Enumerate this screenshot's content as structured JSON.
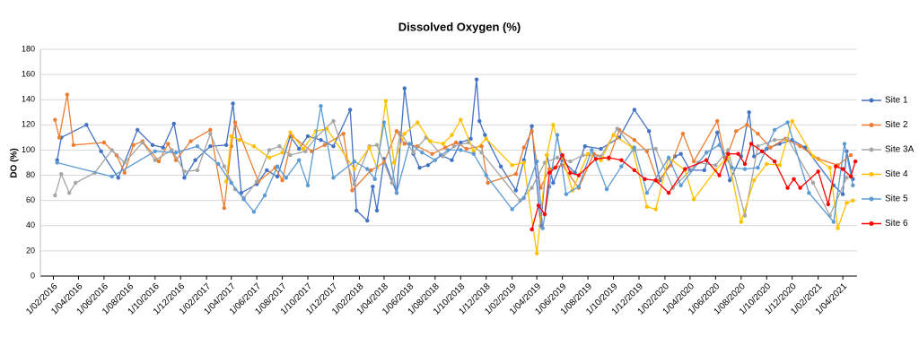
{
  "chart_data": {
    "type": "line",
    "title": "Dissolved Oxygen (%)",
    "y_label": "DO (%)",
    "xlim": [
      "2016-01-01",
      "2021-05-05"
    ],
    "ylim": [
      0,
      180
    ],
    "yticks": [
      0,
      20,
      40,
      60,
      80,
      100,
      120,
      140,
      160,
      180
    ],
    "grid": true,
    "legend": "right",
    "xticks": [
      {
        "value": "2016-02-01",
        "label": "1/02/2016"
      },
      {
        "value": "2016-04-01",
        "label": "1/04/2016"
      },
      {
        "value": "2016-06-01",
        "label": "1/06/2016"
      },
      {
        "value": "2016-08-01",
        "label": "1/08/2016"
      },
      {
        "value": "2016-10-01",
        "label": "1/10/2016"
      },
      {
        "value": "2016-12-01",
        "label": "1/12/2016"
      },
      {
        "value": "2017-02-01",
        "label": "1/02/2017"
      },
      {
        "value": "2017-04-01",
        "label": "1/04/2017"
      },
      {
        "value": "2017-06-01",
        "label": "1/06/2017"
      },
      {
        "value": "2017-08-01",
        "label": "1/08/2017"
      },
      {
        "value": "2017-10-01",
        "label": "1/10/2017"
      },
      {
        "value": "2017-12-01",
        "label": "1/12/2017"
      },
      {
        "value": "2018-02-01",
        "label": "1/02/2018"
      },
      {
        "value": "2018-04-01",
        "label": "1/04/2018"
      },
      {
        "value": "2018-06-01",
        "label": "1/06/2018"
      },
      {
        "value": "2018-08-01",
        "label": "1/08/2018"
      },
      {
        "value": "2018-10-01",
        "label": "1/10/2018"
      },
      {
        "value": "2018-12-01",
        "label": "1/12/2018"
      },
      {
        "value": "2019-02-01",
        "label": "1/02/2019"
      },
      {
        "value": "2019-04-01",
        "label": "1/04/2019"
      },
      {
        "value": "2019-06-01",
        "label": "1/06/2019"
      },
      {
        "value": "2019-08-01",
        "label": "1/08/2019"
      },
      {
        "value": "2019-10-01",
        "label": "1/10/2019"
      },
      {
        "value": "2019-12-01",
        "label": "1/12/2019"
      },
      {
        "value": "2020-02-01",
        "label": "1/02/2020"
      },
      {
        "value": "2020-04-01",
        "label": "1/04/2020"
      },
      {
        "value": "2020-06-01",
        "label": "1/06/2020"
      },
      {
        "value": "2020-08-01",
        "label": "1/08/2020"
      },
      {
        "value": "2020-10-01",
        "label": "1/10/2020"
      },
      {
        "value": "2020-12-01",
        "label": "1/12/2020"
      },
      {
        "value": "2021-02-01",
        "label": "1/02/2021"
      },
      {
        "value": "2021-04-01",
        "label": "1/04/2021"
      }
    ],
    "series": [
      {
        "name": "Site 1",
        "color": "#4472c4",
        "x": [
          "2016-02-10",
          "2016-02-20",
          "2016-04-20",
          "2016-05-25",
          "2016-07-05",
          "2016-08-20",
          "2016-09-25",
          "2016-10-20",
          "2016-11-15",
          "2016-12-10",
          "2017-01-05",
          "2017-02-10",
          "2017-03-20",
          "2017-04-05",
          "2017-04-25",
          "2017-06-01",
          "2017-06-25",
          "2017-07-20",
          "2017-08-20",
          "2017-09-10",
          "2017-10-01",
          "2017-11-01",
          "2017-12-01",
          "2018-01-10",
          "2018-01-25",
          "2018-02-20",
          "2018-03-05",
          "2018-03-15",
          "2018-04-01",
          "2018-05-01",
          "2018-05-20",
          "2018-06-10",
          "2018-06-25",
          "2018-07-15",
          "2018-08-15",
          "2018-09-10",
          "2018-10-01",
          "2018-10-25",
          "2018-11-08",
          "2018-11-15",
          "2018-11-28",
          "2019-01-05",
          "2019-02-10",
          "2019-03-01",
          "2019-03-20",
          "2019-04-10",
          "2019-04-25",
          "2019-05-10",
          "2019-06-01",
          "2019-07-01",
          "2019-07-25",
          "2019-09-01",
          "2019-10-15",
          "2019-11-20",
          "2019-12-25",
          "2020-01-20",
          "2020-02-25",
          "2020-03-10",
          "2020-04-01",
          "2020-05-05",
          "2020-06-05",
          "2020-07-05",
          "2020-08-01",
          "2020-08-20",
          "2020-09-01",
          "2020-10-01",
          "2020-11-01",
          "2020-12-01",
          "2021-01-01",
          "2021-03-10",
          "2021-04-01",
          "2021-04-10",
          "2021-04-25"
        ],
        "values": [
          92,
          110,
          120,
          99,
          78,
          116,
          104,
          102,
          121,
          78,
          92,
          103,
          104,
          137,
          66,
          73,
          84,
          79,
          111,
          101,
          111,
          108,
          103,
          132,
          52,
          44,
          71,
          52,
          93,
          66,
          149,
          97,
          86,
          88,
          96,
          92,
          106,
          109,
          156,
          123,
          112,
          87,
          68,
          92,
          119,
          40,
          96,
          74,
          92,
          82,
          103,
          101,
          110,
          132,
          115,
          76,
          95,
          97,
          84,
          84,
          114,
          76,
          95,
          130,
          95,
          101,
          105,
          108,
          102,
          72,
          65,
          99,
          77
        ]
      },
      {
        "name": "Site 2",
        "color": "#ed7d31",
        "x": [
          "2016-02-05",
          "2016-02-15",
          "2016-03-05",
          "2016-03-20",
          "2016-06-01",
          "2016-07-01",
          "2016-07-20",
          "2016-08-10",
          "2016-09-01",
          "2016-10-10",
          "2016-11-01",
          "2016-11-20",
          "2016-12-25",
          "2017-02-10",
          "2017-03-15",
          "2017-04-01",
          "2017-04-10",
          "2017-06-05",
          "2017-07-15",
          "2017-08-01",
          "2017-08-25",
          "2017-10-10",
          "2017-11-10",
          "2017-12-25",
          "2018-01-15",
          "2018-03-01",
          "2018-04-01",
          "2018-05-01",
          "2018-05-20",
          "2018-06-20",
          "2018-07-25",
          "2018-08-25",
          "2018-09-20",
          "2018-10-15",
          "2018-11-20",
          "2018-12-05",
          "2019-02-10",
          "2019-03-01",
          "2019-03-20",
          "2019-04-10",
          "2019-05-01",
          "2019-06-01",
          "2019-07-10",
          "2019-08-15",
          "2019-09-20",
          "2019-10-15",
          "2019-11-20",
          "2019-12-20",
          "2020-01-15",
          "2020-02-15",
          "2020-03-15",
          "2020-04-10",
          "2020-06-05",
          "2020-06-25",
          "2020-07-20",
          "2020-08-15",
          "2020-09-10",
          "2020-10-10",
          "2020-11-15",
          "2020-12-20",
          "2021-02-01",
          "2021-03-20",
          "2021-04-20"
        ],
        "values": [
          124,
          110,
          144,
          104,
          106,
          96,
          82,
          104,
          107,
          91,
          105,
          92,
          107,
          116,
          54,
          103,
          122,
          75,
          86,
          76,
          111,
          99,
          104,
          113,
          68,
          84,
          90,
          115,
          105,
          103,
          97,
          102,
          106,
          101,
          103,
          74,
          81,
          102,
          115,
          70,
          85,
          88,
          70,
          97,
          93,
          116,
          108,
          99,
          75,
          88,
          113,
          91,
          123,
          92,
          115,
          120,
          113,
          102,
          109,
          103,
          93,
          88,
          96
        ]
      },
      {
        "name": "Site 3A",
        "color": "#a5a5a5",
        "x": [
          "2016-02-05",
          "2016-02-20",
          "2016-03-10",
          "2016-03-25",
          "2016-05-10",
          "2016-06-20",
          "2016-07-20",
          "2016-09-01",
          "2016-10-01",
          "2016-11-10",
          "2016-12-10",
          "2017-01-10",
          "2017-02-10",
          "2017-03-15",
          "2017-04-10",
          "2017-05-01",
          "2017-06-01",
          "2017-07-01",
          "2017-07-25",
          "2017-08-20",
          "2017-09-25",
          "2017-10-20",
          "2017-12-01",
          "2018-01-20",
          "2018-02-25",
          "2018-03-15",
          "2018-04-20",
          "2018-05-10",
          "2018-06-10",
          "2018-07-10",
          "2018-08-20",
          "2018-09-15",
          "2018-10-20",
          "2018-11-20",
          "2019-02-20",
          "2019-03-20",
          "2019-04-20",
          "2019-05-20",
          "2019-06-20",
          "2019-07-20",
          "2019-09-01",
          "2019-10-10",
          "2019-11-20",
          "2020-01-10",
          "2020-02-20",
          "2020-04-20",
          "2020-06-01",
          "2020-07-01",
          "2020-08-10",
          "2020-09-10",
          "2020-10-20",
          "2020-11-20",
          "2021-01-20",
          "2021-03-01",
          "2021-04-10"
        ],
        "values": [
          64,
          81,
          66,
          74,
          82,
          100,
          90,
          106,
          92,
          100,
          83,
          84,
          113,
          87,
          69,
          62,
          75,
          100,
          103,
          96,
          99,
          110,
          123,
          73,
          103,
          104,
          74,
          114,
          98,
          110,
          95,
          103,
          106,
          98,
          60,
          70,
          90,
          94,
          91,
          96,
          95,
          117,
          100,
          101,
          70,
          90,
          88,
          100,
          48,
          103,
          108,
          109,
          74,
          48,
          78
        ]
      },
      {
        "name": "Site 4",
        "color": "#ffc000",
        "x": [
          "2017-03-20",
          "2017-04-01",
          "2017-04-20",
          "2017-05-25",
          "2017-07-01",
          "2017-08-01",
          "2017-08-20",
          "2017-09-20",
          "2017-10-20",
          "2017-11-15",
          "2018-01-20",
          "2018-02-25",
          "2018-03-15",
          "2018-04-05",
          "2018-04-25",
          "2018-05-20",
          "2018-06-20",
          "2018-07-20",
          "2018-08-20",
          "2018-09-10",
          "2018-10-01",
          "2018-11-01",
          "2018-12-01",
          "2019-02-01",
          "2019-03-01",
          "2019-04-01",
          "2019-04-25",
          "2019-05-10",
          "2019-06-01",
          "2019-06-25",
          "2019-08-01",
          "2019-09-01",
          "2019-10-01",
          "2019-11-15",
          "2019-12-20",
          "2020-01-10",
          "2020-02-10",
          "2020-03-20",
          "2020-04-10",
          "2020-06-01",
          "2020-07-01",
          "2020-08-01",
          "2020-09-01",
          "2020-10-01",
          "2020-11-01",
          "2020-12-01",
          "2021-01-20",
          "2021-03-01",
          "2021-03-20",
          "2021-04-10",
          "2021-04-25"
        ],
        "values": [
          75,
          111,
          108,
          103,
          94,
          98,
          114,
          101,
          115,
          117,
          85,
          102,
          86,
          139,
          90,
          113,
          122,
          107,
          105,
          112,
          124,
          99,
          109,
          88,
          90,
          18,
          96,
          120,
          95,
          68,
          97,
          92,
          112,
          102,
          55,
          53,
          94,
          84,
          61,
          84,
          95,
          43,
          76,
          89,
          88,
          123,
          95,
          86,
          38,
          58,
          60
        ]
      },
      {
        "name": "Site 5",
        "color": "#5b9bd5",
        "x": [
          "2016-02-10",
          "2016-06-20",
          "2016-10-01",
          "2016-11-20",
          "2017-01-10",
          "2017-03-01",
          "2017-04-01",
          "2017-05-01",
          "2017-05-25",
          "2017-06-20",
          "2017-07-20",
          "2017-08-10",
          "2017-09-10",
          "2017-10-01",
          "2017-11-01",
          "2017-12-01",
          "2018-01-20",
          "2018-02-20",
          "2018-03-10",
          "2018-04-01",
          "2018-05-01",
          "2018-06-01",
          "2018-07-01",
          "2018-08-01",
          "2018-09-01",
          "2018-10-01",
          "2018-11-01",
          "2018-12-01",
          "2019-02-01",
          "2019-03-01",
          "2019-04-01",
          "2019-04-15",
          "2019-05-01",
          "2019-05-20",
          "2019-06-10",
          "2019-07-10",
          "2019-08-10",
          "2019-09-15",
          "2019-10-20",
          "2019-11-20",
          "2019-12-20",
          "2020-02-10",
          "2020-03-10",
          "2020-05-10",
          "2020-06-10",
          "2020-07-10",
          "2020-08-10",
          "2020-09-10",
          "2020-10-20",
          "2020-11-20",
          "2021-01-10",
          "2021-03-10",
          "2021-04-05",
          "2021-04-25"
        ],
        "values": [
          90,
          79,
          99,
          98,
          103,
          89,
          74,
          61,
          51,
          64,
          87,
          78,
          92,
          72,
          135,
          78,
          91,
          85,
          77,
          122,
          66,
          105,
          98,
          92,
          100,
          100,
          97,
          80,
          53,
          62,
          91,
          38,
          71,
          112,
          65,
          71,
          100,
          69,
          87,
          102,
          66,
          94,
          72,
          98,
          104,
          86,
          85,
          86,
          116,
          122,
          66,
          43,
          105,
          72
        ]
      },
      {
        "name": "Site 6",
        "color": "#ff0000",
        "x": [
          "2019-03-20",
          "2019-04-05",
          "2019-04-20",
          "2019-05-01",
          "2019-05-15",
          "2019-06-01",
          "2019-06-20",
          "2019-07-10",
          "2019-08-20",
          "2019-09-20",
          "2019-10-20",
          "2019-11-20",
          "2019-12-15",
          "2020-01-10",
          "2020-02-10",
          "2020-03-20",
          "2020-05-10",
          "2020-06-10",
          "2020-07-01",
          "2020-07-25",
          "2020-08-10",
          "2020-08-25",
          "2020-09-20",
          "2020-10-20",
          "2020-11-20",
          "2020-12-05",
          "2020-12-20",
          "2021-02-01",
          "2021-02-25",
          "2021-03-15",
          "2021-04-01",
          "2021-04-20",
          "2021-05-01"
        ],
        "values": [
          37,
          56,
          49,
          82,
          86,
          96,
          82,
          80,
          93,
          94,
          92,
          84,
          77,
          76,
          66,
          85,
          92,
          80,
          97,
          97,
          89,
          105,
          99,
          91,
          70,
          77,
          70,
          83,
          57,
          87,
          85,
          79,
          91
        ]
      }
    ]
  }
}
